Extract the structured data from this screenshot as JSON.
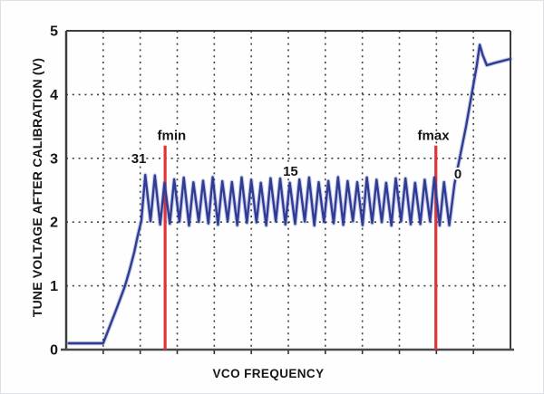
{
  "figure": {
    "kind": "calibration-plot",
    "background": "#fefefe"
  },
  "chart_data": {
    "type": "line",
    "title": "",
    "xlabel": "VCO FREQUENCY",
    "ylabel": "TUNE VOLTAGE AFTER CALIBRATION (V)",
    "xlim": [
      0,
      12
    ],
    "ylim": [
      0,
      5
    ],
    "y_ticks": [
      5,
      4,
      3,
      2,
      1,
      0
    ],
    "x_gridlines": [
      1,
      2,
      3,
      4,
      5,
      6,
      7,
      8,
      9,
      10,
      11
    ],
    "y_gridlines": [
      1,
      2,
      3,
      4
    ],
    "grid_style": "dotted",
    "legend": "none",
    "colors": {
      "curve": "#2e3c96",
      "curve_halo": "rgba(46,60,150,0.25)",
      "marker_line": "#e03438",
      "grid": "#1f1f1f",
      "spine": "#3c3c3c",
      "text": "#161616"
    },
    "series": [
      {
        "name": "tune-voltage-after-calibration",
        "segments": {
          "initial": {
            "points": [
              [
                0.07,
                0.1
              ],
              [
                1.0,
                0.1
              ],
              [
                1.2,
                0.4
              ],
              [
                1.32,
                0.58
              ],
              [
                1.45,
                0.78
              ],
              [
                1.59,
                1.0
              ],
              [
                1.71,
                1.24
              ],
              [
                1.84,
                1.53
              ],
              [
                1.93,
                1.78
              ],
              [
                2.03,
                2.02
              ]
            ]
          },
          "sawtooth": {
            "x_first_peak": 2.135,
            "period": 0.2603,
            "teeth": 32,
            "peak_v": 2.66,
            "valley_v": 1.98,
            "valley_phase": 0.55
          },
          "final_rise": {
            "points": [
              [
                10.49,
                2.6
              ],
              [
                10.8,
                3.5
              ],
              [
                11.09,
                4.45
              ],
              [
                11.17,
                4.78
              ],
              [
                11.25,
                4.62
              ],
              [
                11.36,
                4.46
              ],
              [
                11.6,
                4.5
              ],
              [
                12.0,
                4.56
              ]
            ]
          }
        }
      }
    ],
    "vlines": [
      {
        "label": "fmin",
        "x": 2.672,
        "v_bottom": 0,
        "v_top": 3.2,
        "label_center_x": 2.85
      },
      {
        "label": "fmax",
        "x": 9.985,
        "v_bottom": 0,
        "v_top": 3.2,
        "label_center_x": 9.92
      }
    ],
    "annotations": [
      {
        "text": "31",
        "x": 1.96,
        "v": 3.01
      },
      {
        "text": "15",
        "x": 6.06,
        "v": 2.81
      },
      {
        "text": "0",
        "x": 10.58,
        "v": 2.77
      }
    ]
  }
}
